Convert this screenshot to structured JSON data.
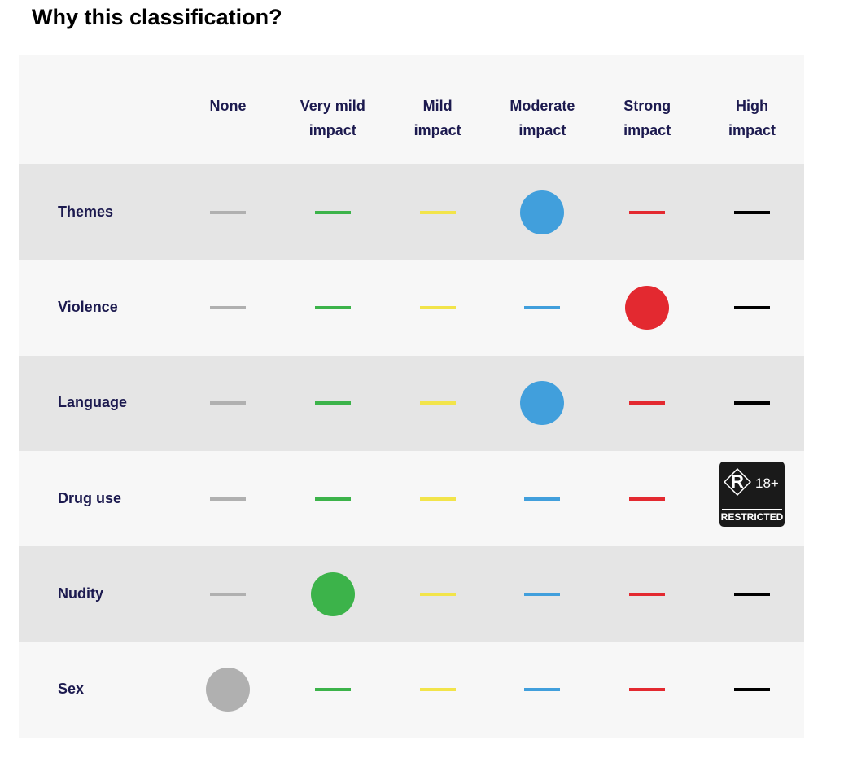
{
  "title": "Why this classification?",
  "columns": [
    {
      "label": [
        "None"
      ],
      "color": "#b0b0b0"
    },
    {
      "label": [
        "Very mild",
        "impact"
      ],
      "color": "#3cb34a"
    },
    {
      "label": [
        "Mild",
        "impact"
      ],
      "color": "#f2e44a"
    },
    {
      "label": [
        "Moderate",
        "impact"
      ],
      "color": "#419fdc"
    },
    {
      "label": [
        "Strong",
        "impact"
      ],
      "color": "#e32930"
    },
    {
      "label": [
        "High",
        "impact"
      ],
      "color": "#000000"
    }
  ],
  "rows": [
    {
      "label": "Themes",
      "level": 3
    },
    {
      "label": "Violence",
      "level": 4
    },
    {
      "label": "Language",
      "level": 3
    },
    {
      "label": "Drug use",
      "level": 5,
      "badge": {
        "letter": "R",
        "age": "18+",
        "label": "RESTRICTED"
      }
    },
    {
      "label": "Nudity",
      "level": 1
    },
    {
      "label": "Sex",
      "level": 0
    }
  ]
}
